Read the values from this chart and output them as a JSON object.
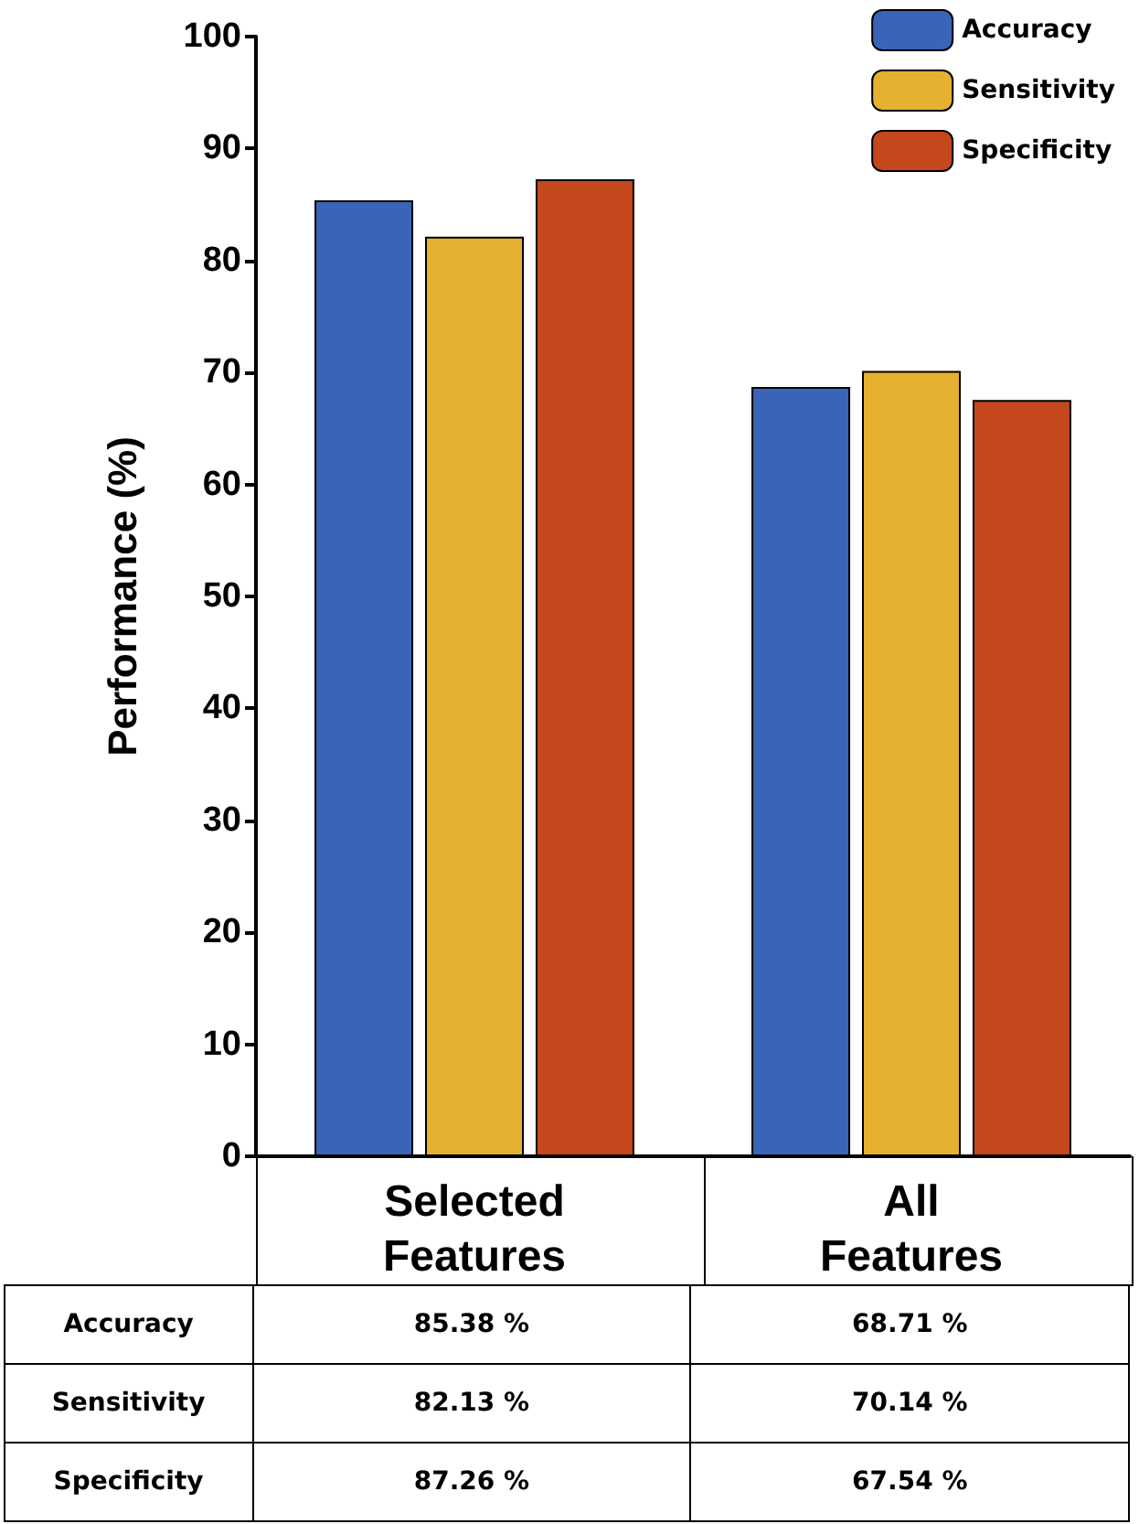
{
  "chart_data": {
    "type": "bar",
    "ylabel": "Performance (%)",
    "categories": [
      "Selected\nFeatures",
      "All\nFeatures"
    ],
    "series": [
      {
        "name": "Accuracy",
        "color": "#3a64b8",
        "values": [
          85.38,
          68.71
        ],
        "value_labels": [
          "85.38 %",
          "68.71 %"
        ]
      },
      {
        "name": "Sensitivity",
        "color": "#e6b030",
        "values": [
          82.13,
          70.14
        ],
        "value_labels": [
          "82.13 %",
          "70.14 %"
        ]
      },
      {
        "name": "Specificity",
        "color": "#c4481c",
        "values": [
          87.26,
          67.54
        ],
        "value_labels": [
          "87.26 %",
          "67.54 %"
        ]
      }
    ],
    "ylim": [
      0,
      100
    ],
    "yticks": [
      0,
      10,
      20,
      30,
      40,
      50,
      60,
      70,
      80,
      90,
      100
    ],
    "grid": false,
    "legend": "top right"
  }
}
